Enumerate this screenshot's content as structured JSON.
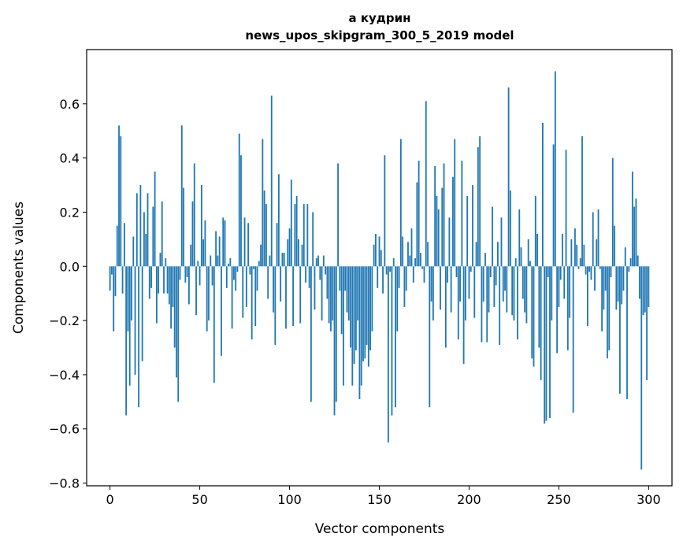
{
  "chart_data": {
    "type": "bar",
    "title_line1": "а кудрин",
    "title_line2": "news_upos_skipgram_300_5_2019 model",
    "xlabel": "Vector components",
    "ylabel": "Components values",
    "xlim": [
      -13,
      313
    ],
    "ylim": [
      -0.81,
      0.8
    ],
    "xticks": [
      0,
      50,
      100,
      150,
      200,
      250,
      300
    ],
    "xtick_labels": [
      "0",
      "50",
      "100",
      "150",
      "200",
      "250",
      "300"
    ],
    "yticks": [
      -0.8,
      -0.6,
      -0.4,
      -0.2,
      0.0,
      0.2,
      0.4,
      0.6
    ],
    "ytick_labels": [
      "−0.8",
      "−0.6",
      "−0.4",
      "−0.2",
      "0.0",
      "0.2",
      "0.4",
      "0.6"
    ],
    "bar_color": "#1f77b4",
    "grid": false,
    "values": [
      -0.09,
      -0.03,
      -0.24,
      -0.11,
      0.15,
      0.52,
      0.48,
      -0.1,
      0.16,
      -0.55,
      -0.24,
      -0.44,
      -0.2,
      0.11,
      -0.4,
      0.27,
      -0.52,
      0.3,
      -0.35,
      0.2,
      0.12,
      0.27,
      -0.12,
      -0.08,
      0.22,
      0.35,
      -0.21,
      -0.1,
      0.05,
      0.24,
      -0.1,
      0.03,
      -0.1,
      -0.14,
      -0.23,
      -0.15,
      -0.3,
      -0.41,
      -0.5,
      -0.05,
      0.52,
      0.29,
      -0.06,
      -0.04,
      -0.14,
      0.08,
      0.24,
      0.38,
      -0.18,
      0.02,
      -0.07,
      0.3,
      0.1,
      0.17,
      -0.24,
      -0.2,
      0.04,
      -0.07,
      -0.43,
      0.13,
      0.04,
      0.11,
      -0.33,
      0.18,
      0.17,
      -0.08,
      0.01,
      0.03,
      -0.23,
      -0.05,
      -0.09,
      -0.02,
      0.49,
      0.41,
      -0.19,
      0.18,
      -0.15,
      0.16,
      -0.03,
      -0.27,
      -0.01,
      -0.22,
      -0.09,
      0.02,
      0.08,
      0.47,
      0.28,
      0.23,
      -0.12,
      0.04,
      0.63,
      -0.17,
      -0.29,
      0.16,
      0.34,
      -0.13,
      0.05,
      0.05,
      -0.23,
      0.1,
      0.14,
      0.32,
      -0.22,
      0.23,
      0.26,
      0.1,
      -0.21,
      0.08,
      0.23,
      -0.06,
      0.23,
      -0.08,
      -0.5,
      0.2,
      -0.16,
      0.03,
      0.04,
      -0.05,
      -0.2,
      0.04,
      -0.03,
      -0.12,
      -0.21,
      -0.24,
      -0.2,
      -0.55,
      -0.5,
      0.38,
      -0.09,
      -0.25,
      -0.44,
      -0.09,
      -0.17,
      -0.2,
      -0.3,
      -0.44,
      -0.36,
      -0.31,
      -0.2,
      -0.49,
      -0.44,
      -0.35,
      -0.34,
      -0.29,
      -0.37,
      -0.31,
      -0.24,
      0.08,
      0.12,
      -0.08,
      0.11,
      0.06,
      -0.1,
      0.41,
      -0.03,
      -0.65,
      -0.02,
      -0.55,
      0.03,
      -0.52,
      -0.24,
      -0.08,
      0.47,
      0.11,
      -0.15,
      -0.09,
      0.09,
      0.04,
      0.14,
      -0.06,
      0.03,
      0.31,
      0.39,
      0.05,
      -0.01,
      -0.06,
      0.61,
      0.09,
      -0.52,
      -0.13,
      -0.2,
      0.37,
      0.26,
      0.21,
      -0.16,
      0.29,
      0.38,
      -0.3,
      -0.06,
      0.18,
      -0.17,
      0.33,
      0.47,
      -0.04,
      -0.27,
      -0.13,
      0.39,
      -0.36,
      -0.2,
      0.26,
      -0.12,
      -0.02,
      0.3,
      -0.19,
      0.09,
      0.44,
      0.48,
      -0.28,
      -0.13,
      0.05,
      -0.28,
      -0.17,
      -0.04,
      0.22,
      -0.15,
      -0.07,
      0.09,
      -0.29,
      0.18,
      -0.13,
      -0.09,
      -0.17,
      0.66,
      0.28,
      -0.18,
      -0.2,
      0.03,
      -0.27,
      0.21,
      0.07,
      -0.12,
      -0.17,
      -0.21,
      0.1,
      0.02,
      -0.34,
      -0.37,
      0.26,
      0.12,
      -0.3,
      -0.42,
      0.53,
      -0.58,
      -0.57,
      -0.04,
      -0.56,
      -0.2,
      0.45,
      0.72,
      -0.32,
      -0.15,
      -0.05,
      0.12,
      -0.12,
      0.43,
      -0.31,
      -0.19,
      0.1,
      -0.54,
      0.14,
      0.08,
      -0.01,
      0.03,
      0.48,
      0.08,
      -0.03,
      -0.22,
      -0.02,
      -0.05,
      0.2,
      -0.09,
      0.1,
      0.21,
      -0.01,
      -0.24,
      -0.16,
      -0.09,
      -0.34,
      -0.31,
      -0.04,
      0.4,
      0.15,
      -0.16,
      -0.13,
      -0.47,
      -0.14,
      -0.09,
      0.07,
      -0.49,
      -0.02,
      0.03,
      0.35,
      0.22,
      0.25,
      0.04,
      -0.12,
      -0.75,
      -0.18,
      -0.17,
      -0.42,
      -0.15
    ]
  }
}
